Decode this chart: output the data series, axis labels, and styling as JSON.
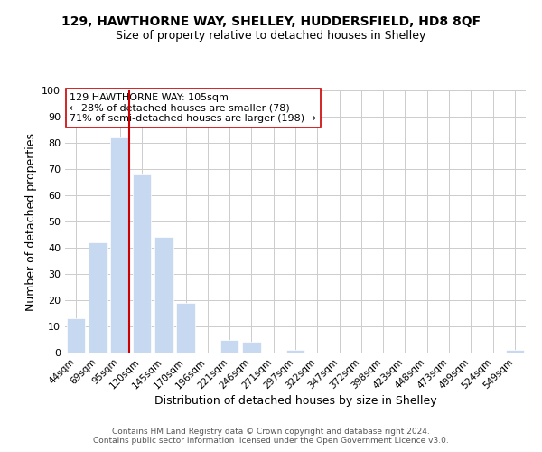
{
  "title": "129, HAWTHORNE WAY, SHELLEY, HUDDERSFIELD, HD8 8QF",
  "subtitle": "Size of property relative to detached houses in Shelley",
  "xlabel": "Distribution of detached houses by size in Shelley",
  "ylabel": "Number of detached properties",
  "bar_labels": [
    "44sqm",
    "69sqm",
    "95sqm",
    "120sqm",
    "145sqm",
    "170sqm",
    "196sqm",
    "221sqm",
    "246sqm",
    "271sqm",
    "297sqm",
    "322sqm",
    "347sqm",
    "372sqm",
    "398sqm",
    "423sqm",
    "448sqm",
    "473sqm",
    "499sqm",
    "524sqm",
    "549sqm"
  ],
  "bar_values": [
    13,
    42,
    82,
    68,
    44,
    19,
    0,
    5,
    4,
    0,
    1,
    0,
    0,
    0,
    0,
    0,
    0,
    0,
    0,
    0,
    1
  ],
  "bar_color": "#c6d9f0",
  "vline_color": "#cc0000",
  "vline_x": 2.425,
  "ylim": [
    0,
    100
  ],
  "annotation_line1": "129 HAWTHORNE WAY: 105sqm",
  "annotation_line2": "← 28% of detached houses are smaller (78)",
  "annotation_line3": "71% of semi-detached houses are larger (198) →",
  "footer_line1": "Contains HM Land Registry data © Crown copyright and database right 2024.",
  "footer_line2": "Contains public sector information licensed under the Open Government Licence v3.0.",
  "background_color": "#ffffff",
  "grid_color": "#cccccc",
  "title_fontsize": 10,
  "subtitle_fontsize": 9,
  "axis_label_fontsize": 9,
  "tick_fontsize": 7.5,
  "annotation_fontsize": 8,
  "footer_fontsize": 6.5
}
